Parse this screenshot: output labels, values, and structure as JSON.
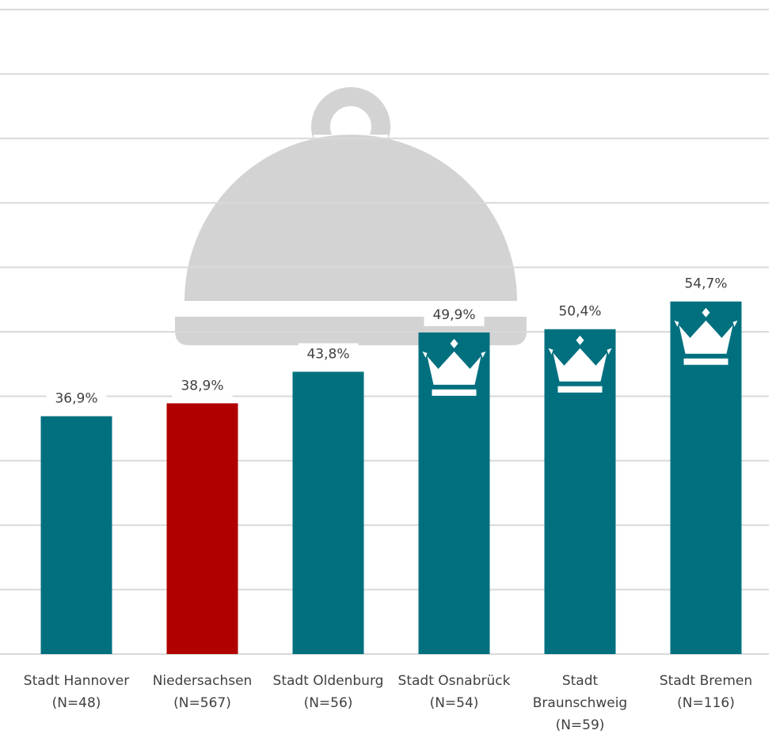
{
  "chart_data": {
    "type": "bar",
    "categories": [
      [
        "Stadt Hannover",
        "(N=48)"
      ],
      [
        "Niedersachsen",
        "(N=567)"
      ],
      [
        "Stadt Oldenburg",
        "(N=56)"
      ],
      [
        "Stadt Osnabrück",
        "(N=54)"
      ],
      [
        "Stadt",
        "Braunschweig",
        "(N=59)"
      ],
      [
        "Stadt Bremen",
        "(N=116)"
      ]
    ],
    "values": [
      36.9,
      38.9,
      43.8,
      49.9,
      50.4,
      54.7
    ],
    "value_labels": [
      "36,9%",
      "38,9%",
      "43,8%",
      "49,9%",
      "50,4%",
      "54,7%"
    ],
    "colors": [
      "#00707f",
      "#b00000",
      "#00707f",
      "#00707f",
      "#00707f",
      "#00707f"
    ],
    "ylim": [
      0,
      100
    ],
    "yticks": [
      0,
      10,
      20,
      30,
      40,
      50,
      60,
      70,
      80,
      90,
      100
    ],
    "grid": true
  }
}
